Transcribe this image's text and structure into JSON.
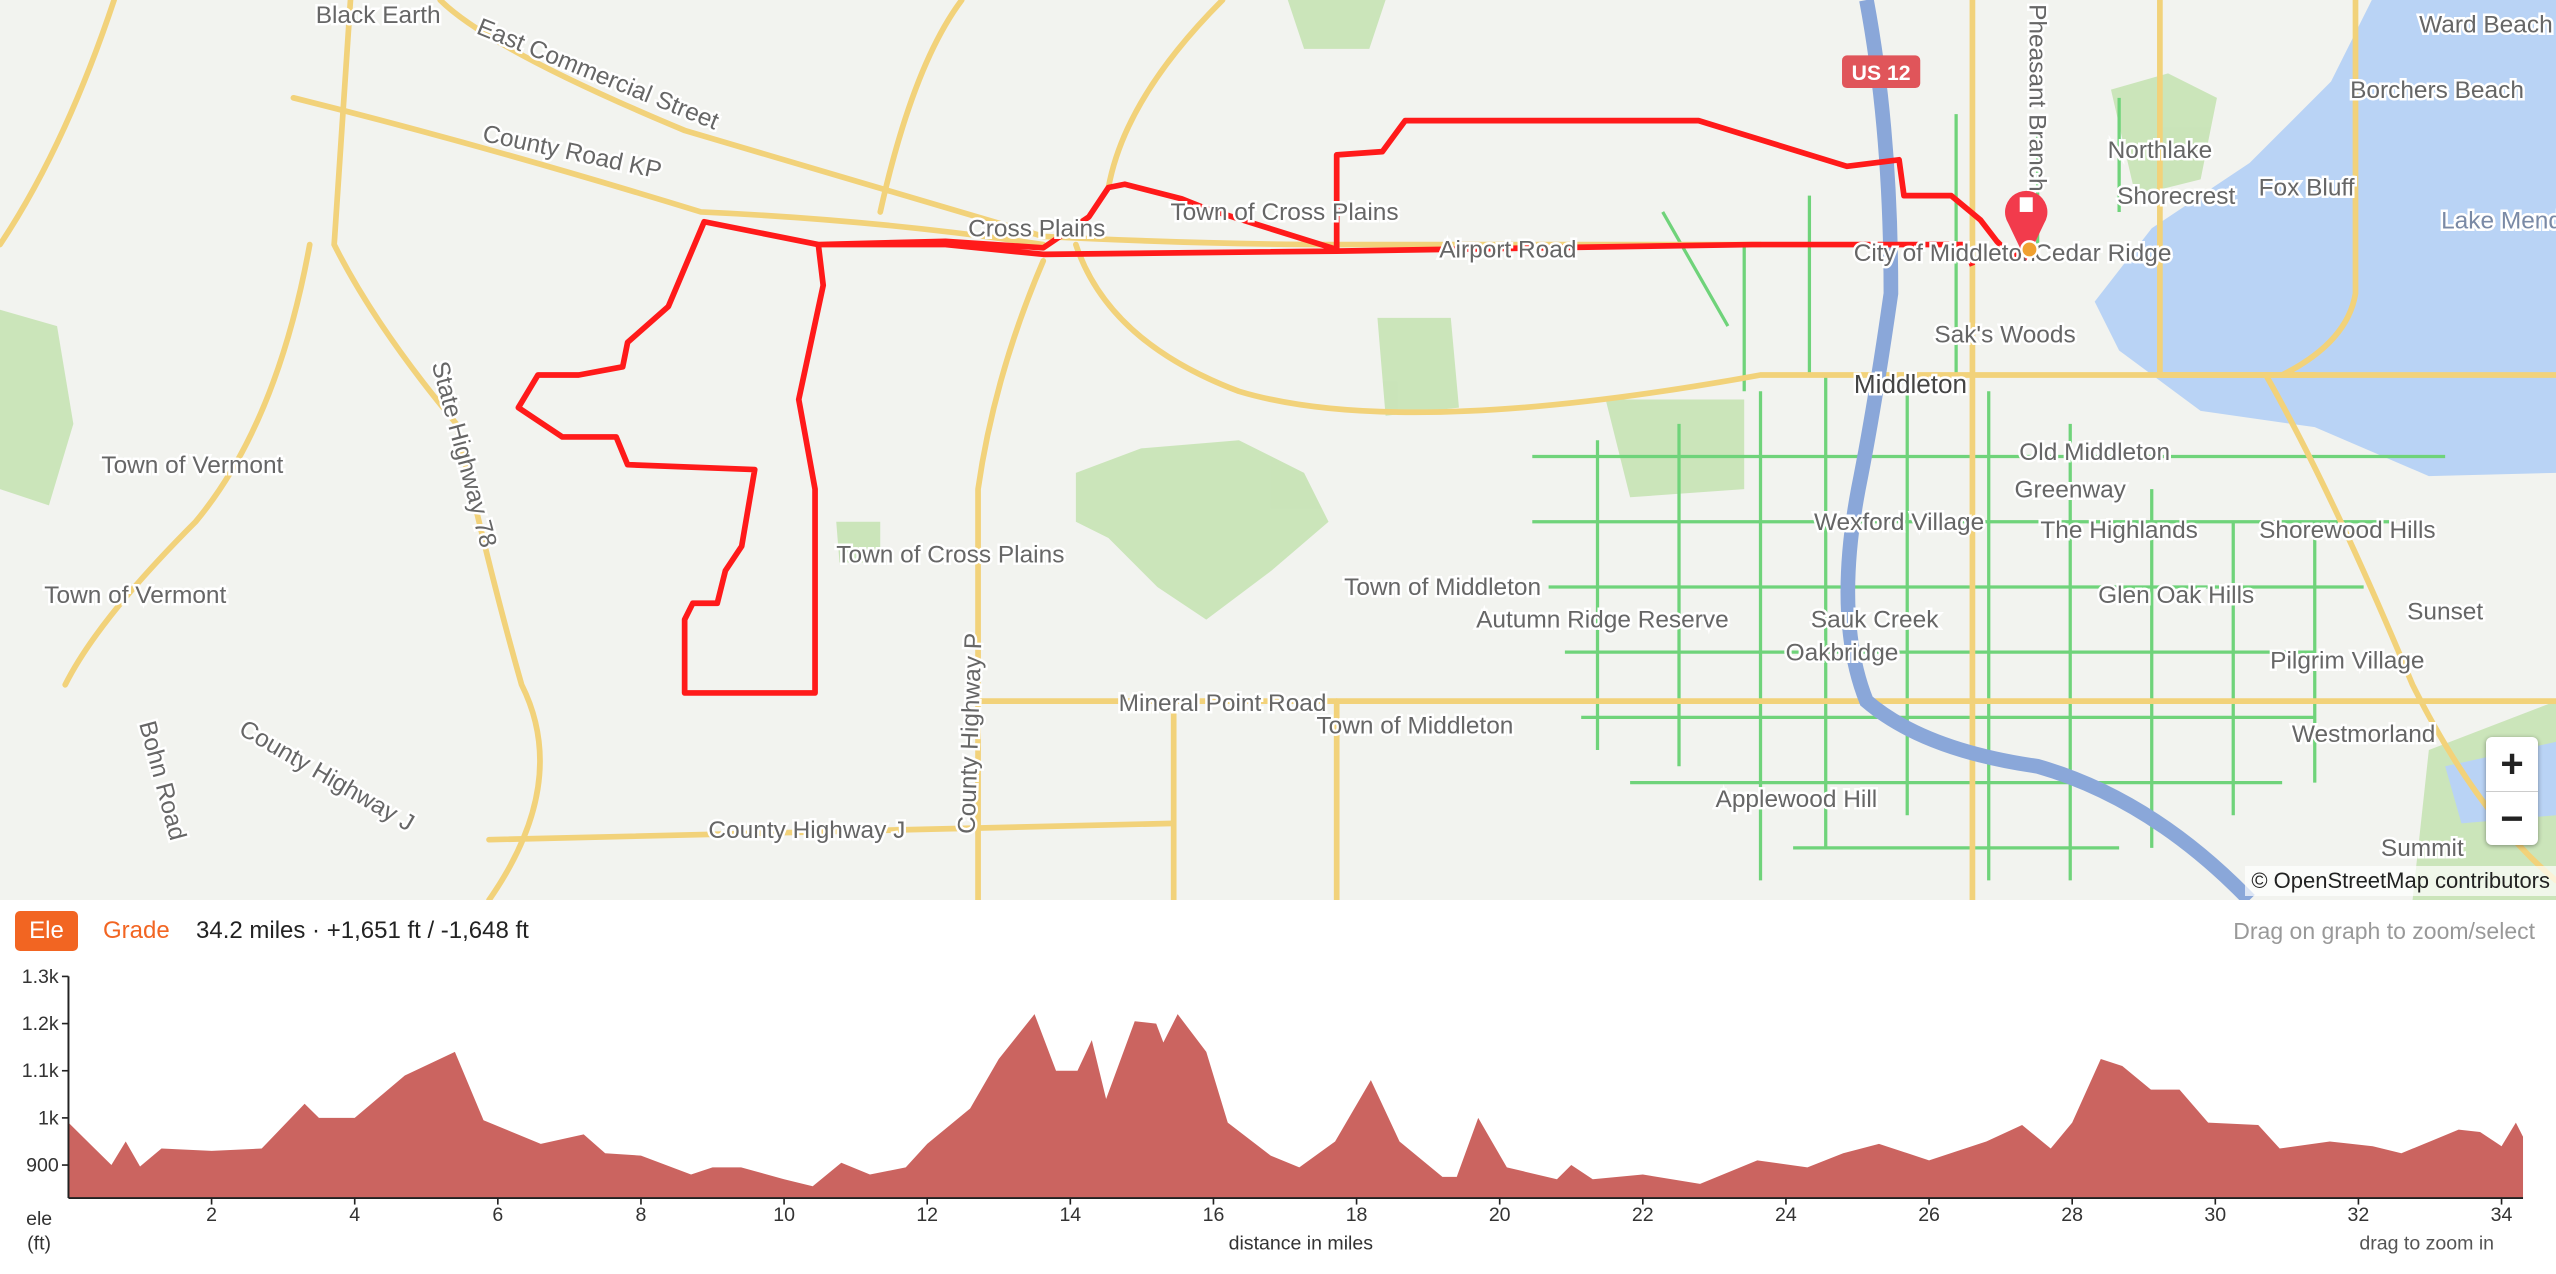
{
  "map": {
    "labels": [
      "Black Earth",
      "East Commercial Street",
      "County Road KP",
      "Cross Plains",
      "Town of Cross Plains",
      "Airport Road",
      "US 12",
      "Pheasant Branch",
      "Northlake",
      "Shorecrest",
      "Fox Bluff",
      "Ward Beach",
      "Borchers Beach",
      "Lake Mendota",
      "City of Middleton",
      "Cedar Ridge",
      "Sak's Woods",
      "Middleton",
      "Town of Vermont",
      "Town of Vermont",
      "State Highway 78",
      "Town of Cross Plains",
      "County Highway P",
      "Old Middleton",
      "Greenway",
      "Wexford Village",
      "The Highlands",
      "Shorewood Hills",
      "Town of Middleton",
      "Autumn Ridge Reserve",
      "Sauk Creek",
      "Oakbridge",
      "Glen Oak Hills",
      "Sunset",
      "Pilgrim Village",
      "Westmorland",
      "Mineral Point Road",
      "Town of Middleton",
      "Applewood Hill",
      "Summit",
      "Bohn Road",
      "County Highway J",
      "County Highway J"
    ],
    "zoom_in": "+",
    "zoom_out": "−",
    "attribution": "© OpenStreetMap contributors",
    "route_color": "#ff1a1a",
    "marker_icon": "map-pin-stop-icon"
  },
  "panel": {
    "tab_ele": "Ele",
    "tab_grade": "Grade",
    "stats": "34.2 miles · +1,651 ft / -1,648 ft",
    "hint": "Drag on graph to zoom/select"
  },
  "chart_data": {
    "type": "area",
    "xlabel": "distance in miles",
    "ylabel": "ele (ft)",
    "ylabel_line1": "ele",
    "ylabel_line2": "(ft)",
    "note": "drag to zoom in",
    "xlim": [
      0,
      34.3
    ],
    "ylim": [
      830,
      1300
    ],
    "x_ticks": [
      2,
      4,
      6,
      8,
      10,
      12,
      14,
      16,
      18,
      20,
      22,
      24,
      26,
      28,
      30,
      32,
      34
    ],
    "y_ticks": [
      900,
      1000,
      1100,
      1200,
      1300
    ],
    "y_tick_labels": [
      "900",
      "1k",
      "1.1k",
      "1.2k",
      "1.3k"
    ],
    "fill_color": "#cb6460",
    "x": [
      0,
      0.3,
      0.6,
      0.8,
      1.0,
      1.3,
      2,
      2.7,
      3.3,
      3.5,
      4,
      4.7,
      5.4,
      5.8,
      6.6,
      7.2,
      7.5,
      8,
      8.7,
      9,
      9.4,
      10,
      10.4,
      10.8,
      11.2,
      11.7,
      12,
      12.6,
      13,
      13.5,
      13.8,
      14.1,
      14.3,
      14.5,
      14.9,
      15.2,
      15.3,
      15.5,
      15.9,
      16.2,
      16.8,
      17.2,
      17.7,
      18.2,
      18.6,
      19.2,
      19.4,
      19.7,
      20.1,
      20.8,
      21,
      21.3,
      22,
      22.8,
      23.6,
      24.3,
      24.8,
      25.3,
      26,
      26.8,
      27.3,
      27.7,
      28,
      28.4,
      28.7,
      29.1,
      29.5,
      29.9,
      30.6,
      30.9,
      31.6,
      32.2,
      32.6,
      33,
      33.4,
      33.7,
      34,
      34.2,
      34.3
    ],
    "y": [
      990,
      945,
      900,
      950,
      897,
      935,
      930,
      935,
      1030,
      1000,
      1000,
      1090,
      1140,
      995,
      945,
      965,
      925,
      920,
      880,
      895,
      895,
      870,
      855,
      905,
      880,
      895,
      945,
      1020,
      1125,
      1220,
      1100,
      1100,
      1165,
      1040,
      1205,
      1200,
      1160,
      1220,
      1140,
      990,
      920,
      895,
      950,
      1080,
      950,
      875,
      875,
      1000,
      895,
      870,
      900,
      870,
      880,
      860,
      910,
      895,
      925,
      945,
      910,
      950,
      985,
      935,
      990,
      1125,
      1110,
      1060,
      1060,
      990,
      985,
      935,
      950,
      940,
      925,
      950,
      975,
      970,
      940,
      990,
      960
    ]
  }
}
